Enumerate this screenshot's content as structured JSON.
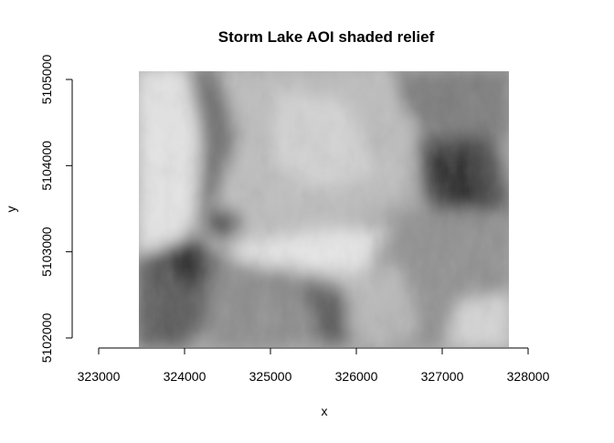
{
  "chart_data": {
    "type": "heatmap",
    "title": "Storm Lake AOI shaded relief",
    "xlabel": "x",
    "ylabel": "y",
    "xlim": [
      322950,
      328000
    ],
    "ylim": [
      5101950,
      5105050
    ],
    "raster_extent": {
      "x": [
        323500,
        327750
      ],
      "y": [
        5101950,
        5105050
      ]
    },
    "x_ticks": [
      323000,
      324000,
      325000,
      326000,
      327000,
      328000
    ],
    "y_ticks": [
      5102000,
      5103000,
      5104000,
      5105000
    ],
    "x_tick_labels": [
      "323000",
      "324000",
      "325000",
      "326000",
      "327000",
      "328000"
    ],
    "y_tick_labels": [
      "5102000",
      "5103000",
      "5104000",
      "5105000"
    ],
    "colormap": "grayscale",
    "grid": false,
    "legend": "none"
  }
}
